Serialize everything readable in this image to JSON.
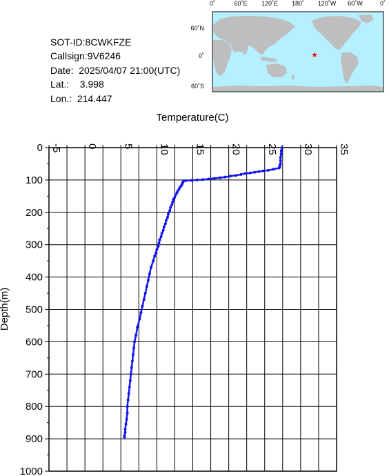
{
  "header": {
    "sot_id": "SOT-ID:8CWKFZE",
    "callsign": "Callsign:9V6246",
    "date": "Date:  2025/04/07 21:00(UTC)",
    "lat": "Lat.:    3.998",
    "lon": "Lon.:  214.447"
  },
  "map": {
    "lon_labels": [
      "0˚",
      "60˚E",
      "120˚E",
      "180˚",
      "120˚W",
      "60˚W",
      "0˚"
    ],
    "lat_labels": [
      "60˚N",
      "0˚",
      "60˚S"
    ],
    "ocean_color": "#b4f0ff",
    "land_color": "#bebebe",
    "marker_color": "#ff0000",
    "marker_icon": "star-icon"
  },
  "chart_data": {
    "type": "line",
    "xlabel": "Temperature(C)",
    "ylabel": "Depth(m)",
    "xlim": [
      -5,
      35
    ],
    "ylim": [
      1000,
      0
    ],
    "x_ticks": [
      "-5",
      "0",
      "5",
      "10",
      "15",
      "20",
      "25",
      "30",
      "35"
    ],
    "y_ticks": [
      "0",
      "100",
      "200",
      "300",
      "400",
      "500",
      "600",
      "700",
      "800",
      "900",
      "1000"
    ],
    "grid": true,
    "line_color": "#1414f0",
    "series": [
      {
        "x": [
          27.4,
          27.3,
          27.3,
          27.2,
          27.2,
          27.2,
          27.1,
          27.1,
          27.0,
          26.2,
          25.5,
          24.8,
          24.2,
          23.6,
          23.0,
          22.3,
          21.7,
          21.0,
          20.2,
          19.5,
          18.8,
          18.0,
          17.2,
          16.4,
          15.6,
          14.8,
          14.0,
          13.7,
          13.6,
          13.5,
          13.4,
          13.2,
          13.1,
          12.9,
          12.8,
          12.6,
          12.5,
          12.3,
          12.2,
          12.1,
          11.9,
          11.8,
          11.6,
          11.5,
          11.3,
          11.2,
          11.0,
          10.9,
          10.7,
          10.6,
          10.4,
          10.3,
          10.2,
          10.0,
          9.9,
          9.7,
          9.5,
          9.2,
          9.0,
          8.8,
          8.6,
          8.4,
          8.2,
          8.0,
          7.8,
          7.6,
          7.3,
          7.1,
          6.9,
          6.8,
          6.7,
          6.6,
          6.5,
          6.4,
          6.3,
          6.2,
          6.1,
          6.0,
          5.9,
          5.9,
          5.8,
          5.7,
          5.6,
          5.6,
          5.5,
          5.5
        ],
        "y": [
          0,
          10,
          20,
          30,
          40,
          50,
          55,
          60,
          63,
          67,
          70,
          72,
          74,
          76,
          78,
          80,
          83,
          86,
          88,
          91,
          93,
          95,
          97,
          99,
          100,
          101,
          102,
          104,
          108,
          113,
          118,
          123,
          128,
          134,
          140,
          146,
          153,
          160,
          168,
          176,
          185,
          195,
          205,
          215,
          225,
          235,
          245,
          255,
          265,
          275,
          285,
          295,
          305,
          315,
          325,
          335,
          350,
          370,
          390,
          410,
          430,
          450,
          470,
          490,
          510,
          530,
          555,
          580,
          600,
          620,
          640,
          660,
          680,
          700,
          720,
          740,
          760,
          780,
          800,
          820,
          840,
          855,
          870,
          880,
          890,
          895
        ]
      }
    ]
  }
}
